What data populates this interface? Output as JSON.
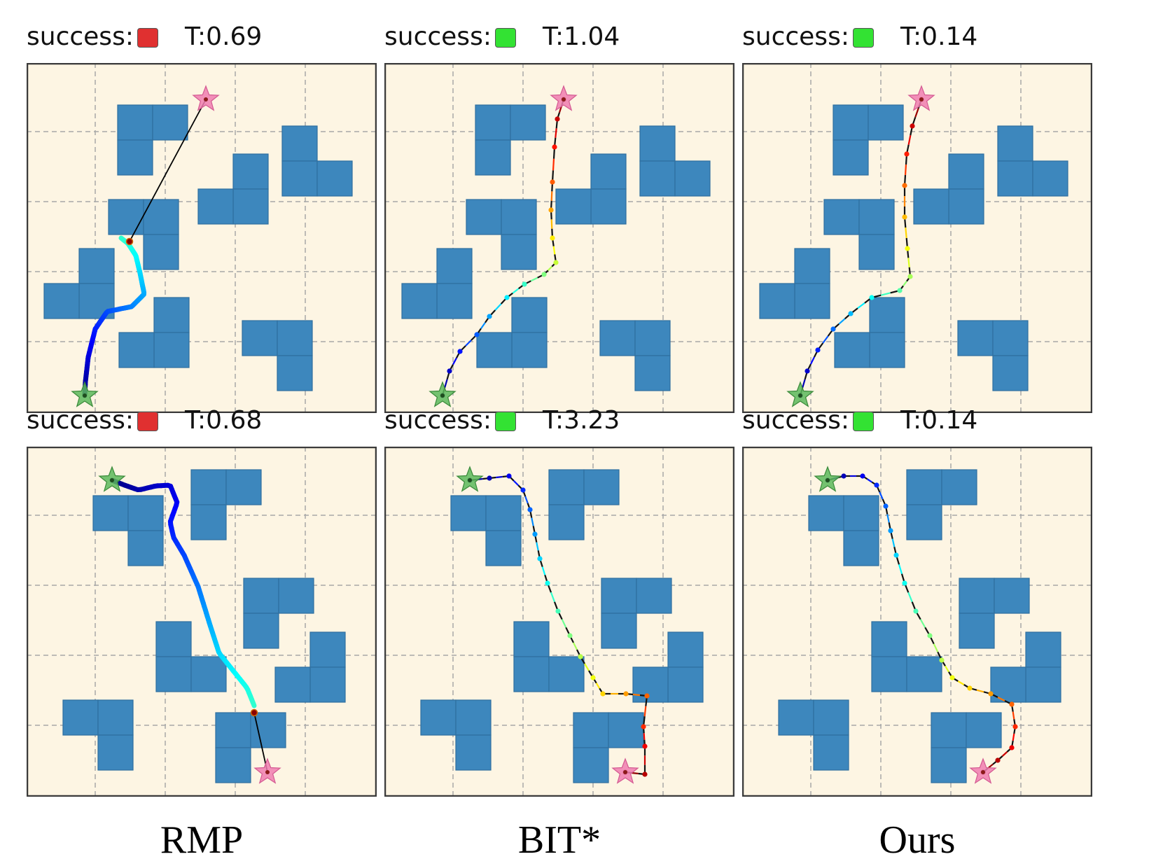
{
  "colors": {
    "background": "#fdf5e3",
    "obstacle": "#3d87bd",
    "obstacle_edge": "#2f6f9f",
    "grid": "#a8a8a8",
    "frame": "#3a3a3a",
    "success_true": "#33e233",
    "success_false": "#e03030",
    "start_star": "#5cb85c",
    "goal_star": "#f07cb0"
  },
  "methods": [
    "RMP",
    "BIT*",
    "Ours"
  ],
  "panels": [
    {
      "id": "rmp-top",
      "method": "RMP",
      "success_label": "success:",
      "success": false,
      "time_label": "T:0.69",
      "path_style": "smooth"
    },
    {
      "id": "bit-top",
      "method": "BIT*",
      "success_label": "success:",
      "success": true,
      "time_label": "T:1.04",
      "path_style": "waypoints"
    },
    {
      "id": "ours-top",
      "method": "Ours",
      "success_label": "success:",
      "success": true,
      "time_label": "T:0.14",
      "path_style": "waypoints"
    },
    {
      "id": "rmp-bottom",
      "method": "RMP",
      "success_label": "success:",
      "success": false,
      "time_label": "T:0.68",
      "path_style": "smooth"
    },
    {
      "id": "bit-bottom",
      "method": "BIT*",
      "success_label": "success:",
      "success": true,
      "time_label": "T:3.23",
      "path_style": "waypoints"
    },
    {
      "id": "ours-bottom",
      "method": "Ours",
      "success_label": "success:",
      "success": true,
      "time_label": "T:0.14",
      "path_style": "waypoints"
    }
  ]
}
